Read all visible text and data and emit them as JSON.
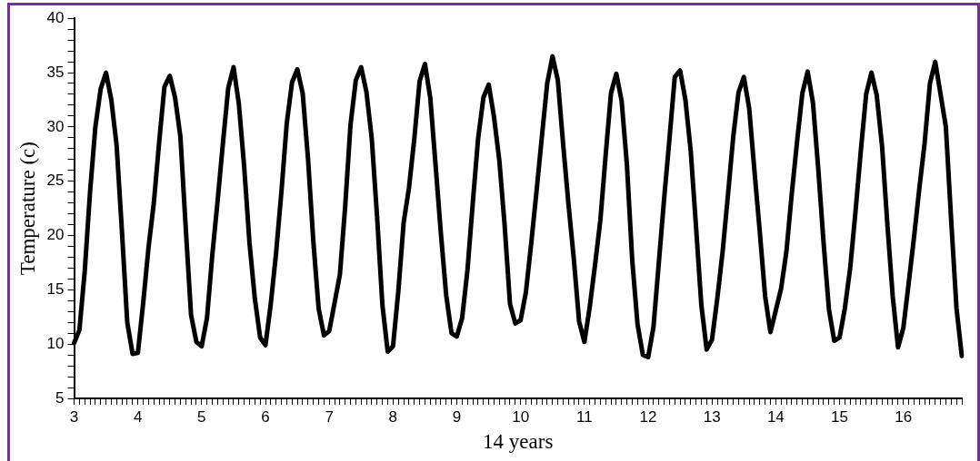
{
  "chart_data": {
    "type": "line",
    "xlabel": "14 years",
    "ylabel": "Temperature (c)",
    "categories": [
      "3",
      null,
      null,
      null,
      null,
      null,
      null,
      null,
      null,
      null,
      null,
      null,
      "4",
      null,
      null,
      null,
      null,
      null,
      null,
      null,
      null,
      null,
      null,
      null,
      "5",
      null,
      null,
      null,
      null,
      null,
      null,
      null,
      null,
      null,
      null,
      null,
      "6",
      null,
      null,
      null,
      null,
      null,
      null,
      null,
      null,
      null,
      null,
      null,
      "7",
      null,
      null,
      null,
      null,
      null,
      null,
      null,
      null,
      null,
      null,
      null,
      "8",
      null,
      null,
      null,
      null,
      null,
      null,
      null,
      null,
      null,
      null,
      null,
      "9",
      null,
      null,
      null,
      null,
      null,
      null,
      null,
      null,
      null,
      null,
      null,
      "10",
      null,
      null,
      null,
      null,
      null,
      null,
      null,
      null,
      null,
      null,
      null,
      "11",
      null,
      null,
      null,
      null,
      null,
      null,
      null,
      null,
      null,
      null,
      null,
      "12",
      null,
      null,
      null,
      null,
      null,
      null,
      null,
      null,
      null,
      null,
      null,
      "13",
      null,
      null,
      null,
      null,
      null,
      null,
      null,
      null,
      null,
      null,
      null,
      "14",
      null,
      null,
      null,
      null,
      null,
      null,
      null,
      null,
      null,
      null,
      null,
      "15",
      null,
      null,
      null,
      null,
      null,
      null,
      null,
      null,
      null,
      null,
      null,
      "16",
      null,
      null,
      null,
      null,
      null,
      null,
      null,
      null,
      null,
      null,
      null
    ],
    "series": [
      {
        "color": "#000000",
        "values": [
          10.1,
          11.3,
          16.7,
          24.0,
          30.0,
          33.5,
          35.0,
          32.5,
          28.3,
          20.4,
          12.0,
          9.1,
          9.2,
          13.8,
          18.9,
          23.0,
          28.6,
          33.7,
          34.7,
          32.7,
          29.1,
          20.7,
          12.7,
          10.2,
          9.8,
          12.4,
          18.2,
          23.2,
          28.5,
          33.6,
          35.5,
          32.1,
          26.3,
          19.3,
          14.2,
          10.6,
          9.9,
          13.7,
          18.4,
          24.0,
          30.3,
          34.1,
          35.3,
          33.1,
          27.1,
          19.5,
          13.3,
          10.8,
          11.2,
          13.8,
          16.4,
          22.7,
          30.2,
          34.3,
          35.5,
          33.2,
          28.9,
          21.7,
          13.6,
          9.3,
          9.8,
          14.9,
          21.2,
          24.4,
          28.9,
          34.2,
          35.8,
          32.7,
          26.5,
          20.2,
          14.5,
          11.0,
          10.7,
          12.4,
          16.8,
          23.0,
          28.9,
          32.7,
          33.9,
          30.9,
          26.9,
          20.9,
          13.7,
          11.9,
          12.2,
          14.8,
          19.3,
          24.1,
          29.1,
          34.0,
          36.5,
          34.3,
          28.4,
          22.9,
          17.9,
          12.1,
          10.2,
          13.4,
          17.3,
          21.4,
          27.4,
          33.1,
          34.9,
          32.4,
          26.5,
          17.7,
          11.8,
          9.0,
          8.8,
          11.6,
          17.5,
          23.4,
          28.9,
          34.6,
          35.2,
          32.5,
          27.8,
          20.8,
          13.6,
          9.5,
          10.4,
          14.2,
          18.5,
          23.7,
          29.1,
          33.2,
          34.6,
          31.7,
          25.9,
          20.3,
          14.4,
          11.1,
          13.1,
          15.1,
          18.5,
          23.8,
          28.6,
          33.1,
          35.1,
          32.2,
          26.1,
          19.3,
          13.2,
          10.3,
          10.6,
          13.3,
          17.0,
          22.2,
          27.8,
          33.0,
          35.0,
          32.9,
          28.2,
          21.0,
          14.4,
          9.7,
          11.5,
          15.6,
          19.8,
          24.3,
          28.5,
          34.0,
          36.0,
          33.0,
          30.0,
          21.4,
          13.3,
          8.9
        ]
      }
    ],
    "ylim": [
      5,
      40
    ],
    "yticks": [
      5,
      {
        "value": 6,
        "label": null
      },
      {
        "value": 7,
        "label": null
      },
      {
        "value": 8,
        "label": null
      },
      {
        "value": 9,
        "label": null
      },
      10,
      {
        "value": 11,
        "label": null
      },
      {
        "value": 12,
        "label": null
      },
      {
        "value": 13,
        "label": null
      },
      {
        "value": 14,
        "label": null
      },
      15,
      {
        "value": 16,
        "label": null
      },
      {
        "value": 17,
        "label": null
      },
      {
        "value": 18,
        "label": null
      },
      {
        "value": 19,
        "label": null
      },
      20,
      {
        "value": 21,
        "label": null
      },
      {
        "value": 22,
        "label": null
      },
      {
        "value": 23,
        "label": null
      },
      {
        "value": 24,
        "label": null
      },
      25,
      {
        "value": 26,
        "label": null
      },
      {
        "value": 27,
        "label": null
      },
      {
        "value": 28,
        "label": null
      },
      {
        "value": 29,
        "label": null
      },
      30,
      {
        "value": 31,
        "label": null
      },
      {
        "value": 32,
        "label": null
      },
      {
        "value": 33,
        "label": null
      },
      {
        "value": 34,
        "label": null
      },
      35,
      {
        "value": 36,
        "label": null
      },
      {
        "value": 37,
        "label": null
      },
      {
        "value": 38,
        "label": null
      },
      {
        "value": 39,
        "label": null
      },
      40
    ],
    "grid": false,
    "legend": false,
    "line_style": "solid"
  }
}
